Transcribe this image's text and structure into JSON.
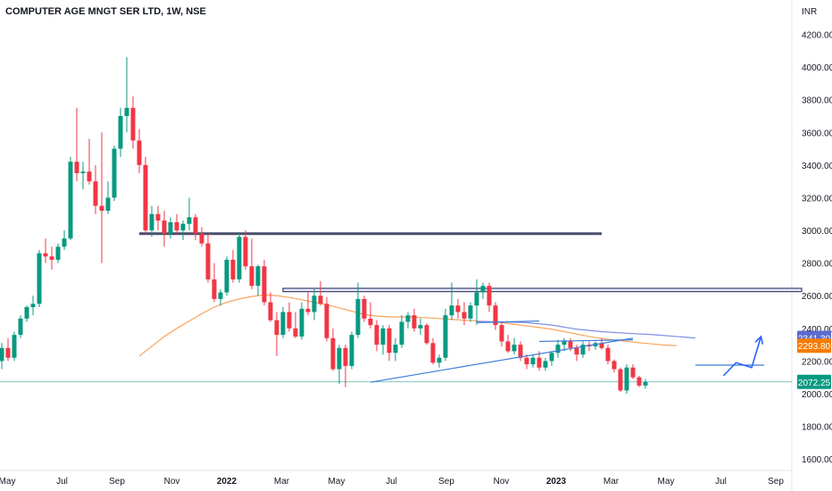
{
  "header": {
    "title": "COMPUTER AGE MNGT SER LTD, 1W, NSE"
  },
  "chart_data": {
    "type": "candlestick",
    "currency_label": "INR",
    "y_ticks": [
      1600,
      1800,
      2000,
      2200,
      2400,
      2600,
      2800,
      3000,
      3200,
      3400,
      3600,
      3800,
      4000,
      4200
    ],
    "y_tick_labels": [
      "1600.00",
      "1800.00",
      "2000.00",
      "2200.00",
      "2400.00",
      "2600.00",
      "2800.00",
      "3000.00",
      "3200.00",
      "3400.00",
      "3600.00",
      "3800.00",
      "4000.00",
      "4200.00"
    ],
    "x_labels": [
      "May",
      "Jul",
      "Sep",
      "Nov",
      "2022",
      "Mar",
      "May",
      "Jul",
      "Sep",
      "Nov",
      "2023",
      "Mar",
      "May",
      "Jul",
      "Sep"
    ],
    "x_label_bold": [
      false,
      false,
      false,
      false,
      true,
      false,
      false,
      false,
      false,
      false,
      true,
      false,
      false,
      false,
      false
    ],
    "ylim": [
      1530,
      4290
    ],
    "week_count_to_axis_end": 140,
    "up_color": "#089981",
    "down_color": "#f23645",
    "candles": [
      [
        2200,
        2310,
        2150,
        2280
      ],
      [
        2280,
        2340,
        2200,
        2220
      ],
      [
        2220,
        2380,
        2200,
        2360
      ],
      [
        2360,
        2480,
        2340,
        2460
      ],
      [
        2460,
        2540,
        2440,
        2530
      ],
      [
        2530,
        2600,
        2480,
        2550
      ],
      [
        2550,
        2880,
        2530,
        2860
      ],
      [
        2860,
        2950,
        2800,
        2840
      ],
      [
        2840,
        2900,
        2760,
        2820
      ],
      [
        2820,
        2920,
        2800,
        2900
      ],
      [
        2900,
        3000,
        2880,
        2950
      ],
      [
        2950,
        3450,
        2940,
        3420
      ],
      [
        3420,
        3750,
        3300,
        3350
      ],
      [
        3350,
        3420,
        3250,
        3360
      ],
      [
        3360,
        3560,
        3280,
        3300
      ],
      [
        3300,
        3400,
        3100,
        3150
      ],
      [
        3150,
        3600,
        2800,
        3120
      ],
      [
        3120,
        3300,
        3100,
        3200
      ],
      [
        3200,
        3520,
        3180,
        3500
      ],
      [
        3500,
        3750,
        3450,
        3700
      ],
      [
        3700,
        4060,
        3600,
        3750
      ],
      [
        3750,
        3820,
        3500,
        3550
      ],
      [
        3550,
        3620,
        3350,
        3400
      ],
      [
        3400,
        3450,
        2980,
        3000
      ],
      [
        3000,
        3150,
        2960,
        3100
      ],
      [
        3100,
        3150,
        3000,
        3060
      ],
      [
        3060,
        3120,
        2900,
        2980
      ],
      [
        2980,
        3080,
        2950,
        3050
      ],
      [
        3050,
        3100,
        2980,
        3000
      ],
      [
        3000,
        3060,
        2940,
        3040
      ],
      [
        3040,
        3200,
        3000,
        3080
      ],
      [
        3080,
        3100,
        2940,
        2980
      ],
      [
        2980,
        3020,
        2900,
        2920
      ],
      [
        2920,
        2980,
        2680,
        2700
      ],
      [
        2700,
        2800,
        2560,
        2580
      ],
      [
        2580,
        2640,
        2540,
        2620
      ],
      [
        2620,
        2840,
        2600,
        2820
      ],
      [
        2820,
        2880,
        2680,
        2700
      ],
      [
        2700,
        2990,
        2680,
        2960
      ],
      [
        2960,
        3000,
        2760,
        2780
      ],
      [
        2780,
        2950,
        2640,
        2660
      ],
      [
        2660,
        2790,
        2600,
        2780
      ],
      [
        2780,
        2820,
        2540,
        2560
      ],
      [
        2560,
        2620,
        2440,
        2450
      ],
      [
        2450,
        2500,
        2230,
        2360
      ],
      [
        2360,
        2530,
        2340,
        2500
      ],
      [
        2500,
        2560,
        2380,
        2400
      ],
      [
        2400,
        2500,
        2340,
        2350
      ],
      [
        2350,
        2560,
        2330,
        2520
      ],
      [
        2520,
        2620,
        2480,
        2500
      ],
      [
        2500,
        2640,
        2450,
        2600
      ],
      [
        2600,
        2690,
        2540,
        2550
      ],
      [
        2550,
        2590,
        2320,
        2340
      ],
      [
        2340,
        2400,
        2140,
        2150
      ],
      [
        2150,
        2300,
        2060,
        2280
      ],
      [
        2280,
        2300,
        2040,
        2170
      ],
      [
        2170,
        2380,
        2150,
        2360
      ],
      [
        2360,
        2680,
        2340,
        2580
      ],
      [
        2580,
        2600,
        2440,
        2460
      ],
      [
        2460,
        2560,
        2400,
        2420
      ],
      [
        2420,
        2450,
        2260,
        2300
      ],
      [
        2300,
        2420,
        2240,
        2400
      ],
      [
        2400,
        2420,
        2200,
        2250
      ],
      [
        2250,
        2340,
        2200,
        2300
      ],
      [
        2300,
        2480,
        2280,
        2440
      ],
      [
        2440,
        2500,
        2400,
        2480
      ],
      [
        2480,
        2520,
        2380,
        2400
      ],
      [
        2400,
        2460,
        2360,
        2420
      ],
      [
        2420,
        2430,
        2300,
        2310
      ],
      [
        2310,
        2340,
        2180,
        2190
      ],
      [
        2190,
        2240,
        2160,
        2220
      ],
      [
        2220,
        2520,
        2200,
        2480
      ],
      [
        2480,
        2680,
        2450,
        2540
      ],
      [
        2540,
        2580,
        2460,
        2500
      ],
      [
        2500,
        2560,
        2420,
        2460
      ],
      [
        2460,
        2560,
        2440,
        2540
      ],
      [
        2540,
        2700,
        2420,
        2620
      ],
      [
        2620,
        2680,
        2580,
        2660
      ],
      [
        2660,
        2680,
        2500,
        2540
      ],
      [
        2540,
        2560,
        2390,
        2420
      ],
      [
        2420,
        2440,
        2290,
        2320
      ],
      [
        2320,
        2360,
        2250,
        2260
      ],
      [
        2260,
        2340,
        2240,
        2300
      ],
      [
        2300,
        2320,
        2200,
        2220
      ],
      [
        2220,
        2240,
        2150,
        2180
      ],
      [
        2180,
        2240,
        2160,
        2220
      ],
      [
        2220,
        2260,
        2140,
        2160
      ],
      [
        2160,
        2220,
        2140,
        2200
      ],
      [
        2200,
        2260,
        2170,
        2250
      ],
      [
        2250,
        2330,
        2220,
        2300
      ],
      [
        2300,
        2340,
        2260,
        2320
      ],
      [
        2320,
        2340,
        2260,
        2280
      ],
      [
        2280,
        2300,
        2200,
        2240
      ],
      [
        2240,
        2320,
        2220,
        2300
      ],
      [
        2300,
        2320,
        2260,
        2290
      ],
      [
        2290,
        2320,
        2270,
        2310
      ],
      [
        2310,
        2340,
        2270,
        2280
      ],
      [
        2280,
        2300,
        2180,
        2200
      ],
      [
        2200,
        2210,
        2130,
        2150
      ],
      [
        2150,
        2160,
        2010,
        2020
      ],
      [
        2020,
        2180,
        2000,
        2160
      ],
      [
        2160,
        2180,
        2090,
        2100
      ],
      [
        2100,
        2110,
        2040,
        2050
      ],
      [
        2050,
        2090,
        2030,
        2072
      ]
    ],
    "sma": [
      [
        22,
        2230
      ],
      [
        24,
        2290
      ],
      [
        26,
        2350
      ],
      [
        28,
        2400
      ],
      [
        30,
        2445
      ],
      [
        32,
        2490
      ],
      [
        34,
        2530
      ],
      [
        36,
        2560
      ],
      [
        38,
        2580
      ],
      [
        40,
        2595
      ],
      [
        42,
        2605
      ],
      [
        44,
        2600
      ],
      [
        46,
        2590
      ],
      [
        48,
        2575
      ],
      [
        50,
        2560
      ],
      [
        52,
        2545
      ],
      [
        54,
        2525
      ],
      [
        56,
        2505
      ],
      [
        58,
        2485
      ],
      [
        60,
        2475
      ],
      [
        62,
        2470
      ],
      [
        64,
        2470
      ],
      [
        66,
        2468
      ],
      [
        68,
        2465
      ],
      [
        70,
        2460
      ],
      [
        72,
        2455
      ],
      [
        74,
        2450
      ],
      [
        76,
        2445
      ],
      [
        78,
        2440
      ],
      [
        80,
        2435
      ],
      [
        82,
        2425
      ],
      [
        84,
        2415
      ],
      [
        86,
        2405
      ],
      [
        88,
        2395
      ],
      [
        90,
        2380
      ],
      [
        92,
        2365
      ],
      [
        94,
        2350
      ],
      [
        96,
        2338
      ],
      [
        98,
        2328
      ],
      [
        100,
        2320
      ],
      [
        102,
        2312
      ],
      [
        104,
        2305
      ],
      [
        106,
        2298
      ],
      [
        108,
        2294
      ]
    ],
    "sma_color": "#f7a35c",
    "sma_slow": [
      [
        76,
        2442
      ],
      [
        80,
        2440
      ],
      [
        84,
        2435
      ],
      [
        88,
        2420
      ],
      [
        92,
        2395
      ],
      [
        96,
        2380
      ],
      [
        100,
        2370
      ],
      [
        104,
        2362
      ],
      [
        108,
        2350
      ],
      [
        111,
        2341
      ]
    ],
    "sma_slow_color": "#7e8ee6",
    "horizontal_zones": [
      {
        "from": 22,
        "to": 96,
        "price": 2980,
        "kind": "line",
        "color": "#4a4e6b"
      },
      {
        "from": 45,
        "to": 128,
        "price": 2645,
        "price_low": 2625,
        "kind": "box",
        "color": "#e8ecfb",
        "border": "#3a3f68"
      }
    ],
    "trend_lines": [
      {
        "points": [
          [
            59,
            2070
          ],
          [
            76,
            2180
          ]
        ],
        "color": "#3a7bd5"
      },
      {
        "points": [
          [
            76,
            2180
          ],
          [
            101,
            2340
          ]
        ],
        "color": "#3a7bd5"
      },
      {
        "points": [
          [
            76,
            2435
          ],
          [
            86,
            2445
          ]
        ],
        "color": "#3a7bd5"
      },
      {
        "points": [
          [
            86,
            2320
          ],
          [
            101,
            2330
          ]
        ],
        "color": "#3a7bd5"
      },
      {
        "points": [
          [
            111,
            2175
          ],
          [
            122,
            2175
          ]
        ],
        "color": "#3a7bd5"
      }
    ],
    "projection_arrow": {
      "points": [
        [
          115.5,
          2110
        ],
        [
          117.5,
          2190
        ],
        [
          120,
          2160
        ],
        [
          121.5,
          2350
        ]
      ],
      "color": "#2962ff"
    },
    "price_badges": [
      {
        "price": 2341.3,
        "label": "2341.30",
        "color": "#5b6bcf"
      },
      {
        "price": 2293.8,
        "label": "2293.80",
        "color": "#f57c00"
      },
      {
        "price": 2072.25,
        "label": "2072.25",
        "color": "#089981"
      }
    ],
    "current_price_line": {
      "price": 2072.25,
      "color": "#089981"
    }
  }
}
